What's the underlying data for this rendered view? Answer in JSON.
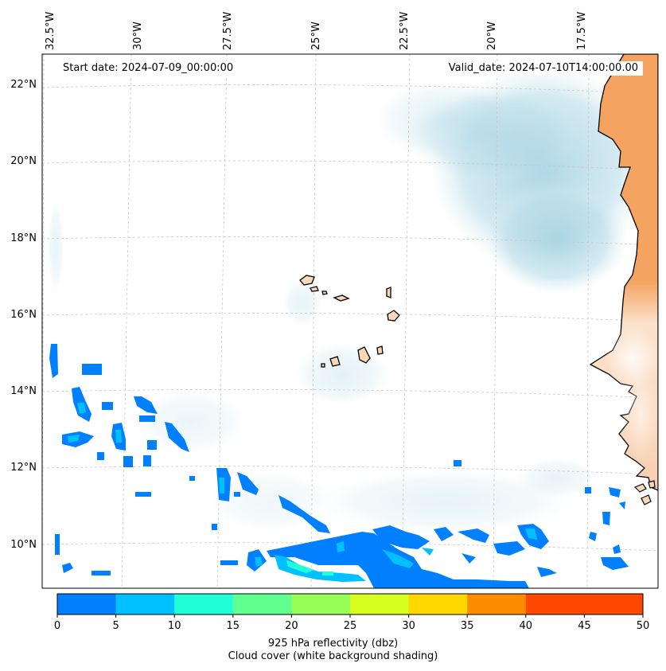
{
  "map": {
    "start_label": "Start date: 2024-07-09_00:00:00",
    "valid_label": "Valid_date: 2024-07-10T14:00:00.00",
    "lon_labels": [
      "32.5°W",
      "30°W",
      "27.5°W",
      "25°W",
      "22.5°W",
      "20°W",
      "17.5°W"
    ],
    "lat_labels": [
      "22°N",
      "20°N",
      "18°N",
      "16°N",
      "14°N",
      "12°N",
      "10°N"
    ],
    "colors": {
      "land": "#f4a460",
      "coast": "#000000",
      "cloud": "#a8d4e2",
      "islands": "#f8d8b8"
    }
  },
  "colorbar": {
    "ticks": [
      "0",
      "5",
      "10",
      "15",
      "20",
      "25",
      "30",
      "35",
      "40",
      "45",
      "50"
    ],
    "colors": [
      "#0080ff",
      "#00c0ff",
      "#20ffd8",
      "#60ff90",
      "#98ff58",
      "#d8ff20",
      "#ffd800",
      "#ff8c00",
      "#ff4800",
      "#ff4800"
    ],
    "label_line1": "925 hPa reflectivity (dbz)",
    "label_line2": "Cloud cover (white background shading)"
  }
}
